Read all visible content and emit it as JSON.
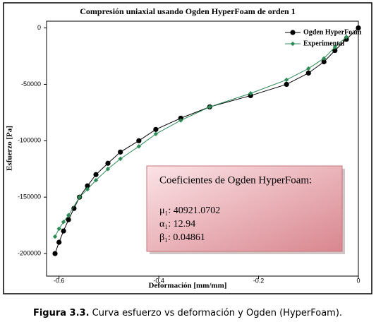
{
  "chart_data": {
    "type": "line",
    "title": "Compresión uniaxial usando Ogden HyperFoam de orden 1",
    "x_label": "Deformación [mm/mm]",
    "y_label": "Esfuerzo [Pa]",
    "xlim": [
      -0.625,
      0
    ],
    "ylim": [
      -220000,
      6000
    ],
    "xticks": [
      -0.6,
      -0.4,
      -0.2,
      0
    ],
    "yticks": [
      0,
      -50000,
      -100000,
      -150000,
      -200000
    ],
    "legend": "top-right",
    "series": [
      {
        "name": "Ogden HyperFoam",
        "color": "#000000",
        "marker": "circle",
        "x": [
          -0.608,
          -0.6,
          -0.591,
          -0.581,
          -0.57,
          -0.559,
          -0.543,
          -0.526,
          -0.502,
          -0.477,
          -0.44,
          -0.406,
          -0.356,
          -0.298,
          -0.216,
          -0.144,
          -0.1,
          -0.069,
          -0.047,
          -0.024,
          0
        ],
        "values": [
          -200000,
          -190000,
          -180000,
          -170000,
          -160000,
          -150000,
          -140000,
          -130000,
          -120000,
          -110000,
          -100000,
          -90000,
          -80000,
          -70000,
          -60000,
          -50000,
          -40000,
          -30000,
          -20000,
          -10000,
          0
        ]
      },
      {
        "name": "Experimental",
        "color": "#2e8b57",
        "marker": "diamond",
        "x": [
          -0.608,
          -0.6,
          -0.591,
          -0.581,
          -0.559,
          -0.543,
          -0.526,
          -0.502,
          -0.477,
          -0.44,
          -0.406,
          -0.356,
          -0.298,
          -0.216,
          -0.144,
          -0.1,
          -0.069,
          -0.047,
          -0.024
        ],
        "values": [
          -185000,
          -178000,
          -172000,
          -166000,
          -150000,
          -143000,
          -135000,
          -125000,
          -116000,
          -105000,
          -94000,
          -82000,
          -70000,
          -58000,
          -46000,
          -36000,
          -27000,
          -17000,
          -8000
        ]
      }
    ],
    "annotation": {
      "heading": "Coeficientes de Ogden HyperFoam:",
      "lines": [
        "μ₁: 40921.0702",
        "α₁: 12.94",
        "β₁: 0.04861"
      ]
    },
    "caption": {
      "label": "Figura 3.3.",
      "text": " Curva esfuerzo vs deformación y Ogden (HyperFoam)."
    }
  }
}
